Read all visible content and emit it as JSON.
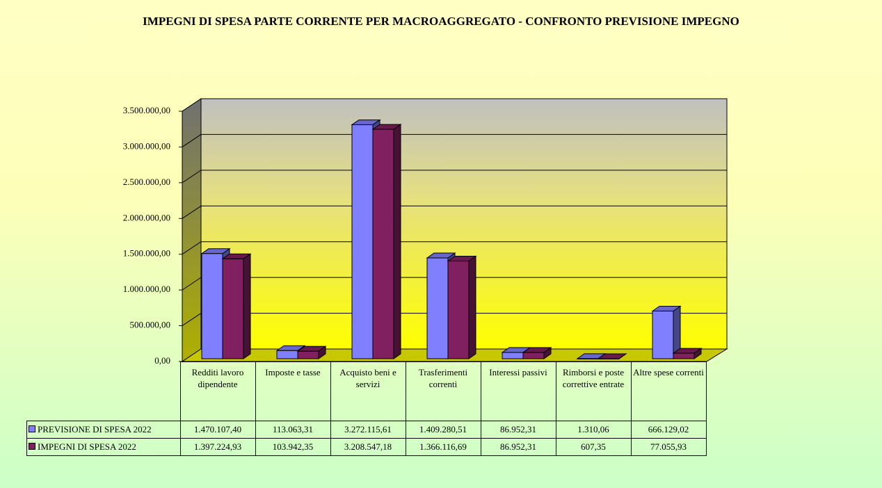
{
  "chart_data": {
    "type": "bar3d",
    "title": "IMPEGNI DI SPESA PARTE CORRENTE PER MACROAGGREGATO - CONFRONTO PREVISIONE IMPEGNO",
    "categories": [
      "Redditi lavoro dipendente",
      "Imposte e tasse",
      "Acquisto beni e servizi",
      "Trasferimenti correnti",
      "Interessi passivi",
      "Rimborsi e poste correttive entrate",
      "Altre spese correnti"
    ],
    "series": [
      {
        "name": "PREVISIONE DI SPESA 2022",
        "color": "#8080ff",
        "values": [
          1470107.4,
          113063.31,
          3272115.61,
          1409280.51,
          86952.31,
          1310.06,
          666129.02
        ],
        "value_labels": [
          "1.470.107,40",
          "113.063,31",
          "3.272.115,61",
          "1.409.280,51",
          "86.952,31",
          "1.310,06",
          "666.129,02"
        ]
      },
      {
        "name": "IMPEGNI DI SPESA 2022",
        "color": "#802060",
        "values": [
          1397224.93,
          103942.35,
          3208547.18,
          1366116.69,
          86952.31,
          607.35,
          77055.93
        ],
        "value_labels": [
          "1.397.224,93",
          "103.942,35",
          "3.208.547,18",
          "1.366.116,69",
          "86.952,31",
          "607,35",
          "77.055,93"
        ]
      }
    ],
    "ylim": [
      0,
      3500000
    ],
    "yticks": [
      {
        "value": 0,
        "label": "0,00"
      },
      {
        "value": 500000,
        "label": "500.000,00"
      },
      {
        "value": 1000000,
        "label": "1.000.000,00"
      },
      {
        "value": 1500000,
        "label": "1.500.000,00"
      },
      {
        "value": 2000000,
        "label": "2.000.000,00"
      },
      {
        "value": 2500000,
        "label": "2.500.000,00"
      },
      {
        "value": 3000000,
        "label": "3.000.000,00"
      },
      {
        "value": 3500000,
        "label": "3.500.000,00"
      }
    ],
    "grid": true,
    "legend": "table"
  }
}
